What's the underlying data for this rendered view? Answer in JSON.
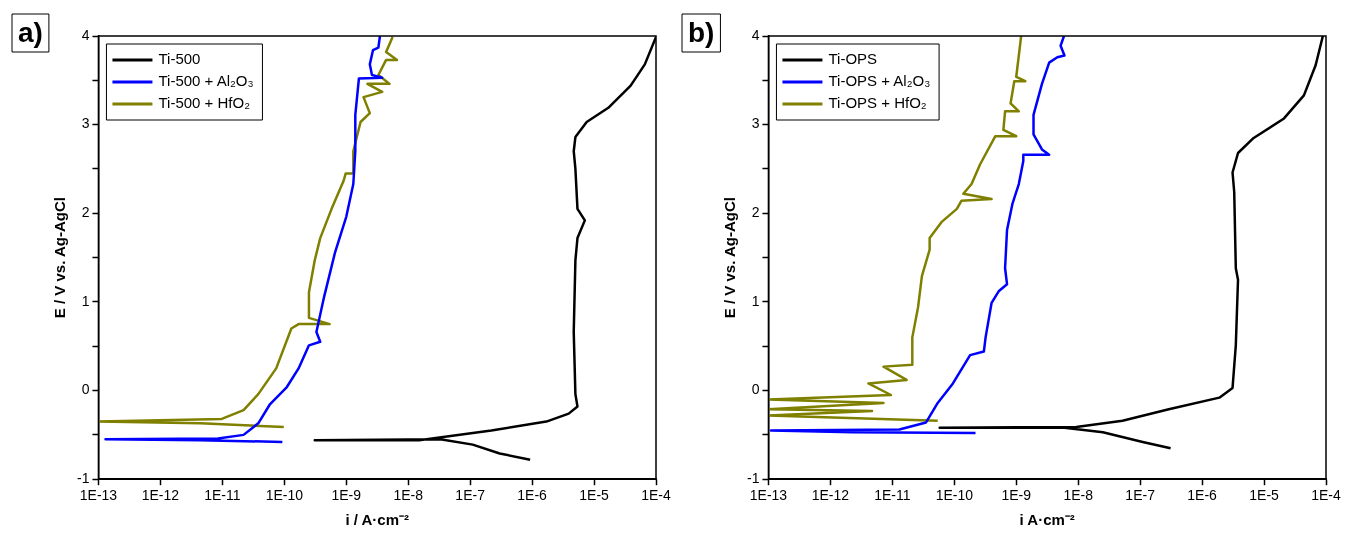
{
  "chart_data": [
    {
      "type": "line",
      "title": "a)",
      "xlabel": "i / A·cm⁻²",
      "ylabel": "E / V vs. Ag-AgCl",
      "log": "x",
      "grid": false,
      "legend": "top left",
      "marker": "none",
      "line_style": "solid",
      "xlim": [
        1e-13,
        0.0001
      ],
      "xticks": [
        {
          "value": 1e-13,
          "label": "1E-13"
        },
        {
          "value": 1e-12,
          "label": "1E-12"
        },
        {
          "value": 1e-11,
          "label": "1E-11"
        },
        {
          "value": 1e-10,
          "label": "1E-10"
        },
        {
          "value": 1e-09,
          "label": "1E-9"
        },
        {
          "value": 1e-08,
          "label": "1E-8"
        },
        {
          "value": 1e-07,
          "label": "1E-7"
        },
        {
          "value": 1e-06,
          "label": "1E-6"
        },
        {
          "value": 1e-05,
          "label": "1E-5"
        },
        {
          "value": 0.0001,
          "label": "1E-4"
        }
      ],
      "ylim": [
        -1,
        4
      ],
      "yticks": [
        -1,
        {
          "value": -0.5,
          "label": null
        },
        0,
        {
          "value": 0.5,
          "label": null
        },
        1,
        {
          "value": 1.5,
          "label": null
        },
        2,
        {
          "value": 2.5,
          "label": null
        },
        3,
        {
          "value": 3.5,
          "label": null
        },
        4
      ],
      "series": [
        {
          "name": "Ti-500",
          "color": "#000000",
          "x": [
            9.3e-07,
            3e-07,
            1.1e-07,
            3.3e-08,
            3.1e-10,
            1.5e-08,
            2.2e-07,
            1.7e-06,
            3.9e-06,
            5.4e-06,
            5e-06,
            4.7e-06,
            5e-06,
            5.4e-06,
            7.1e-06,
            5.4e-06,
            5e-06,
            4.7e-06,
            5e-06,
            7.6e-06,
            1.7e-05,
            3.9e-05,
            6.6e-05,
            0.0001
          ],
          "values": [
            -0.78,
            -0.71,
            -0.61,
            -0.55,
            -0.56,
            -0.56,
            -0.45,
            -0.35,
            -0.26,
            -0.18,
            -0.04,
            0.66,
            1.47,
            1.72,
            1.92,
            2.05,
            2.5,
            2.7,
            2.86,
            3.03,
            3.19,
            3.44,
            3.68,
            3.99
          ]
        },
        {
          "name": "Ti-500 + Al₂O₃",
          "color": "#0000ff",
          "x": [
            9.3e-11,
            4.4e-12,
            1.3e-13,
            8.5e-12,
            2.2e-11,
            3.8e-11,
            5.8e-11,
            1.1e-10,
            1.7e-10,
            2.5e-10,
            3.8e-10,
            3.3e-10,
            4.4e-10,
            6.6e-10,
            1e-09,
            1.3e-09,
            1.4e-09,
            1.4e-09,
            1.6e-09,
            3.8e-09,
            2.6e-09,
            2.4e-09,
            2.7e-09,
            3.3e-09,
            3.5e-09
          ],
          "values": [
            -0.58,
            -0.56,
            -0.55,
            -0.54,
            -0.5,
            -0.37,
            -0.16,
            0.04,
            0.25,
            0.51,
            0.55,
            0.66,
            1.06,
            1.56,
            1.96,
            2.33,
            2.7,
            3.11,
            3.52,
            3.53,
            3.56,
            3.68,
            3.84,
            3.87,
            4.0
          ]
        },
        {
          "name": "Ti-500 + HfO₂",
          "color": "#808000",
          "x": [
            9.8e-11,
            4.4e-12,
            1e-13,
            9.8e-12,
            2.2e-11,
            3.8e-11,
            7.4e-11,
            1.3e-10,
            1.7e-10,
            5.4e-10,
            2.5e-10,
            2.5e-10,
            3.1e-10,
            3.8e-10,
            5.8e-10,
            9.1e-10,
            9.8e-10,
            1.3e-09,
            1.3e-09,
            1.7e-09,
            2.4e-09,
            1.9e-09,
            3.8e-09,
            2.2e-09,
            5e-09,
            3.3e-09,
            4.4e-09,
            6.6e-09,
            4.4e-09,
            5.6e-09
          ],
          "values": [
            -0.41,
            -0.37,
            -0.35,
            -0.32,
            -0.22,
            -0.04,
            0.25,
            0.7,
            0.75,
            0.75,
            0.82,
            1.11,
            1.47,
            1.72,
            2.05,
            2.37,
            2.45,
            2.45,
            2.7,
            3.03,
            3.13,
            3.31,
            3.37,
            3.46,
            3.46,
            3.56,
            3.73,
            3.73,
            3.82,
            3.99
          ]
        }
      ]
    },
    {
      "type": "line",
      "title": "b)",
      "xlabel": "i A·cm⁻²",
      "ylabel": "E / V vs. Ag-AgCl",
      "log": "x",
      "grid": false,
      "legend": "top left",
      "marker": "none",
      "line_style": "solid",
      "xlim": [
        1e-13,
        0.0001
      ],
      "xticks": [
        {
          "value": 1e-13,
          "label": "1E-13"
        },
        {
          "value": 1e-12,
          "label": "1E-12"
        },
        {
          "value": 1e-11,
          "label": "1E-11"
        },
        {
          "value": 1e-10,
          "label": "1E-10"
        },
        {
          "value": 1e-09,
          "label": "1E-9"
        },
        {
          "value": 1e-08,
          "label": "1E-8"
        },
        {
          "value": 1e-07,
          "label": "1E-7"
        },
        {
          "value": 1e-06,
          "label": "1E-6"
        },
        {
          "value": 1e-05,
          "label": "1E-5"
        },
        {
          "value": 0.0001,
          "label": "1E-4"
        }
      ],
      "ylim": [
        -1,
        4
      ],
      "yticks": [
        -1,
        {
          "value": -0.5,
          "label": null
        },
        0,
        {
          "value": 0.5,
          "label": null
        },
        1,
        {
          "value": 1.5,
          "label": null
        },
        2,
        {
          "value": 2.5,
          "label": null
        },
        3,
        {
          "value": 3.5,
          "label": null
        },
        4
      ],
      "series": [
        {
          "name": "Ti-OPS",
          "color": "#000000",
          "x": [
            3.1e-07,
            1.1e-07,
            2.5e-08,
            6e-09,
            5.8e-11,
            9.3e-09,
            5.2e-08,
            2.9e-07,
            1.9e-06,
            3.1e-06,
            3.5e-06,
            3.8e-06,
            3.5e-06,
            3.3e-06,
            3.1e-06,
            3.8e-06,
            6.8e-06,
            2.1e-05,
            4.4e-05,
            6.8e-05,
            8.9e-05
          ],
          "values": [
            -0.65,
            -0.58,
            -0.47,
            -0.42,
            -0.42,
            -0.41,
            -0.34,
            -0.21,
            -0.08,
            0.03,
            0.51,
            1.25,
            1.38,
            2.24,
            2.46,
            2.68,
            2.85,
            3.07,
            3.33,
            3.67,
            4.0
          ]
        },
        {
          "name": "Ti-OPS + Al₂O₃",
          "color": "#0000ff",
          "x": [
            2.2e-10,
            2.3e-12,
            1.1e-13,
            1.3e-11,
            3.5e-11,
            5.4e-11,
            9.5e-11,
            1.8e-10,
            3e-10,
            3.2e-10,
            4e-10,
            5.2e-10,
            7.1e-10,
            6.6e-10,
            7.1e-10,
            8.7e-10,
            1.1e-09,
            1.3e-09,
            1.3e-09,
            3.4e-09,
            2.6e-09,
            1.9e-09,
            1.9e-09,
            2.6e-09,
            3.4e-09,
            4.6e-09,
            6e-09,
            5.2e-09,
            5.9e-09
          ],
          "values": [
            -0.48,
            -0.47,
            -0.45,
            -0.44,
            -0.36,
            -0.14,
            0.08,
            0.4,
            0.44,
            0.6,
            0.99,
            1.12,
            1.2,
            1.38,
            1.81,
            2.11,
            2.33,
            2.59,
            2.66,
            2.66,
            2.72,
            2.89,
            3.11,
            3.46,
            3.7,
            3.76,
            3.78,
            3.89,
            4.0
          ]
        },
        {
          "name": "Ti-OPS + HfO₂",
          "color": "#808000",
          "x": [
            5.4e-11,
            1e-13,
            4.7e-12,
            1e-13,
            7.2e-12,
            1e-13,
            9.5e-12,
            4.1e-12,
            1.7e-11,
            7.2e-12,
            2.1e-11,
            2.1e-11,
            2.6e-11,
            3e-11,
            4e-11,
            4e-11,
            6.2e-11,
            1.1e-10,
            1.3e-10,
            4e-10,
            1.4e-10,
            1.9e-10,
            2.6e-10,
            4.6e-10,
            1e-09,
            6.2e-10,
            6.6e-10,
            1.1e-09,
            8.1e-10,
            9.3e-10,
            1.4e-09,
            1e-09,
            1.2e-09
          ],
          "values": [
            -0.34,
            -0.28,
            -0.23,
            -0.21,
            -0.14,
            -0.1,
            -0.05,
            0.08,
            0.12,
            0.27,
            0.29,
            0.6,
            0.94,
            1.29,
            1.59,
            1.72,
            1.9,
            2.05,
            2.14,
            2.16,
            2.22,
            2.33,
            2.55,
            2.87,
            2.87,
            2.94,
            3.15,
            3.15,
            3.24,
            3.49,
            3.49,
            3.54,
            4.0
          ]
        }
      ]
    }
  ]
}
